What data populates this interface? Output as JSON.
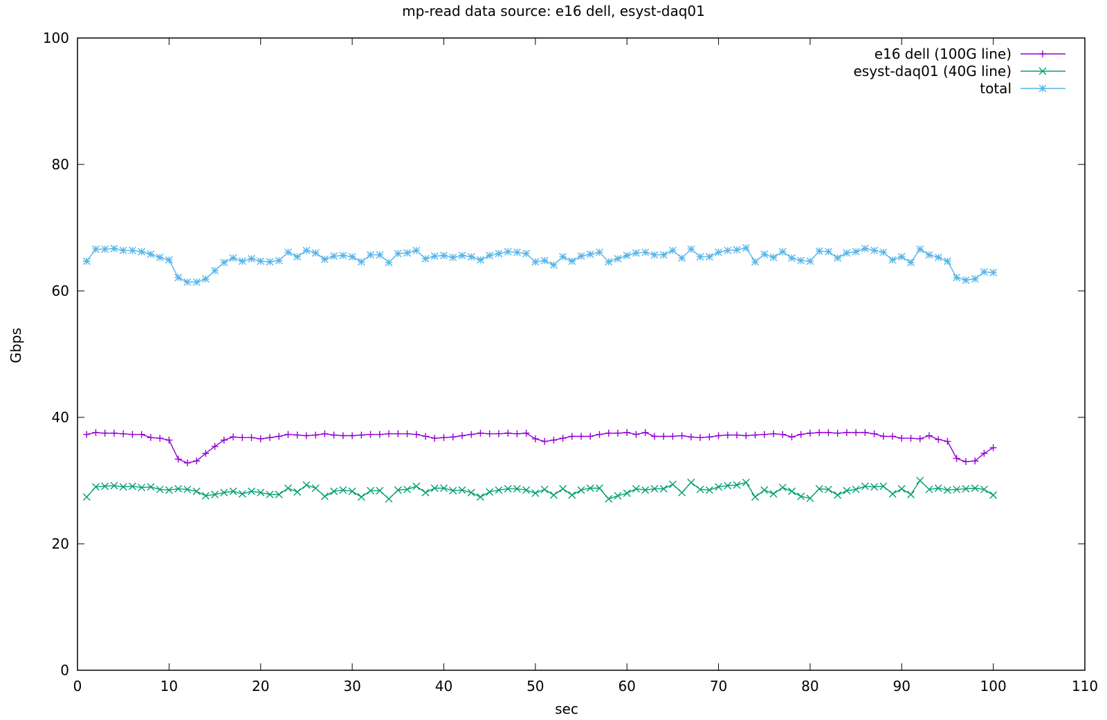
{
  "chart_data": {
    "type": "line",
    "title": "mp-read data source: e16 dell, esyst-daq01",
    "xlabel": "sec",
    "ylabel": "Gbps",
    "xlim": [
      0,
      110
    ],
    "ylim": [
      0,
      100
    ],
    "xticks": [
      0,
      10,
      20,
      30,
      40,
      50,
      60,
      70,
      80,
      90,
      100,
      110
    ],
    "yticks": [
      0,
      20,
      40,
      60,
      80,
      100
    ],
    "grid": false,
    "legend_position": "top-right",
    "x": [
      1,
      2,
      3,
      4,
      5,
      6,
      7,
      8,
      9,
      10,
      11,
      12,
      13,
      14,
      15,
      16,
      17,
      18,
      19,
      20,
      21,
      22,
      23,
      24,
      25,
      26,
      27,
      28,
      29,
      30,
      31,
      32,
      33,
      34,
      35,
      36,
      37,
      38,
      39,
      40,
      41,
      42,
      43,
      44,
      45,
      46,
      47,
      48,
      49,
      50,
      51,
      52,
      53,
      54,
      55,
      56,
      57,
      58,
      59,
      60,
      61,
      62,
      63,
      64,
      65,
      66,
      67,
      68,
      69,
      70,
      71,
      72,
      73,
      74,
      75,
      76,
      77,
      78,
      79,
      80,
      81,
      82,
      83,
      84,
      85,
      86,
      87,
      88,
      89,
      90,
      91,
      92,
      93,
      94,
      95,
      96,
      97,
      98,
      99,
      100
    ],
    "series": [
      {
        "name": "e16 dell (100G line)",
        "color": "#9400d3",
        "marker": "plus",
        "values": [
          37.3,
          37.6,
          37.5,
          37.5,
          37.4,
          37.3,
          37.3,
          36.8,
          36.7,
          36.4,
          33.4,
          32.8,
          33.1,
          34.3,
          35.4,
          36.4,
          36.9,
          36.8,
          36.8,
          36.6,
          36.8,
          37.0,
          37.3,
          37.2,
          37.1,
          37.2,
          37.4,
          37.2,
          37.1,
          37.1,
          37.2,
          37.3,
          37.3,
          37.4,
          37.4,
          37.4,
          37.3,
          37.0,
          36.7,
          36.8,
          36.9,
          37.1,
          37.3,
          37.5,
          37.4,
          37.4,
          37.5,
          37.4,
          37.5,
          36.6,
          36.2,
          36.4,
          36.7,
          37.0,
          37.0,
          37.0,
          37.3,
          37.5,
          37.5,
          37.6,
          37.3,
          37.6,
          37.0,
          37.0,
          37.0,
          37.1,
          36.9,
          36.8,
          36.9,
          37.1,
          37.2,
          37.2,
          37.1,
          37.2,
          37.3,
          37.4,
          37.3,
          36.9,
          37.3,
          37.5,
          37.6,
          37.6,
          37.5,
          37.6,
          37.6,
          37.6,
          37.4,
          37.0,
          37.0,
          36.7,
          36.7,
          36.6,
          37.1,
          36.5,
          36.2,
          33.5,
          33.0,
          33.1,
          34.3,
          35.2
        ]
      },
      {
        "name": "esyst-daq01 (40G line)",
        "color": "#009e73",
        "marker": "cross",
        "values": [
          27.4,
          29.0,
          29.1,
          29.2,
          29.0,
          29.1,
          28.9,
          29.0,
          28.6,
          28.5,
          28.7,
          28.6,
          28.3,
          27.6,
          27.8,
          28.1,
          28.3,
          27.9,
          28.3,
          28.1,
          27.8,
          27.8,
          28.8,
          28.2,
          29.3,
          28.8,
          27.5,
          28.3,
          28.5,
          28.3,
          27.4,
          28.4,
          28.4,
          27.1,
          28.5,
          28.6,
          29.1,
          28.1,
          28.8,
          28.8,
          28.4,
          28.5,
          28.1,
          27.4,
          28.2,
          28.5,
          28.7,
          28.7,
          28.5,
          28.0,
          28.6,
          27.7,
          28.7,
          27.7,
          28.5,
          28.8,
          28.8,
          27.1,
          27.6,
          28.0,
          28.7,
          28.5,
          28.7,
          28.7,
          29.4,
          28.1,
          29.7,
          28.6,
          28.5,
          29.0,
          29.2,
          29.3,
          29.7,
          27.4,
          28.5,
          27.9,
          28.9,
          28.3,
          27.5,
          27.2,
          28.7,
          28.6,
          27.7,
          28.4,
          28.6,
          29.1,
          29.0,
          29.1,
          27.9,
          28.7,
          27.8,
          30.0,
          28.6,
          28.8,
          28.5,
          28.6,
          28.7,
          28.8,
          28.6,
          27.7
        ]
      },
      {
        "name": "total",
        "color": "#56b4e9",
        "marker": "star",
        "values": [
          64.7,
          66.6,
          66.6,
          66.7,
          66.4,
          66.4,
          66.2,
          65.8,
          65.3,
          64.9,
          62.1,
          61.4,
          61.4,
          61.9,
          63.2,
          64.5,
          65.2,
          64.7,
          65.1,
          64.7,
          64.6,
          64.8,
          66.1,
          65.4,
          66.4,
          66.0,
          65.0,
          65.5,
          65.6,
          65.4,
          64.6,
          65.7,
          65.7,
          64.5,
          65.9,
          66.0,
          66.4,
          65.1,
          65.5,
          65.6,
          65.3,
          65.6,
          65.4,
          64.9,
          65.6,
          65.9,
          66.2,
          66.1,
          65.9,
          64.6,
          64.8,
          64.1,
          65.4,
          64.7,
          65.5,
          65.8,
          66.1,
          64.6,
          65.1,
          65.6,
          66.0,
          66.1,
          65.7,
          65.7,
          66.4,
          65.2,
          66.6,
          65.4,
          65.4,
          66.1,
          66.4,
          66.5,
          66.8,
          64.6,
          65.8,
          65.3,
          66.2,
          65.2,
          64.8,
          64.7,
          66.3,
          66.2,
          65.2,
          66.0,
          66.2,
          66.7,
          66.4,
          66.1,
          64.9,
          65.4,
          64.5,
          66.6,
          65.7,
          65.3,
          64.7,
          62.1,
          61.7,
          61.9,
          63.0,
          62.9
        ]
      }
    ]
  }
}
